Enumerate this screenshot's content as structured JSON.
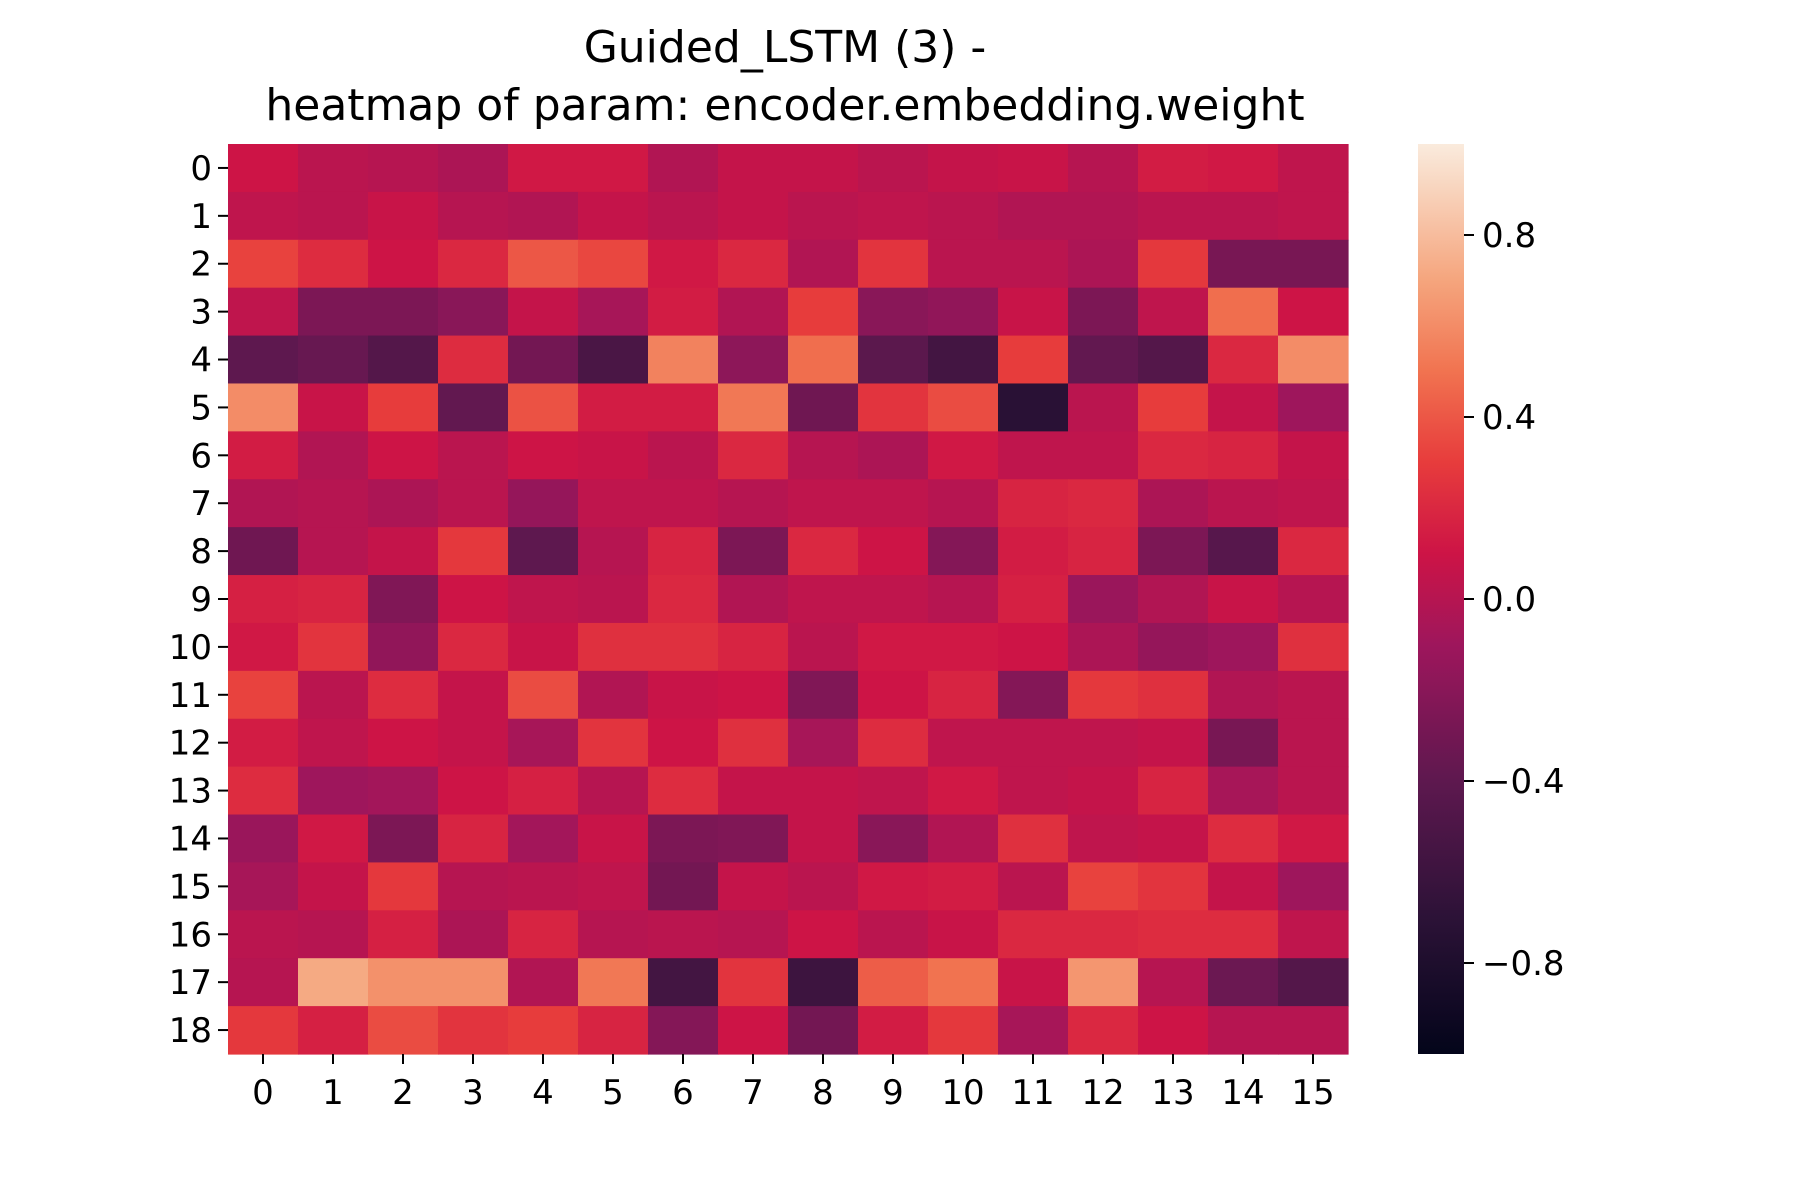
{
  "chart_data": {
    "type": "heatmap",
    "title": "Guided_LSTM (3) -",
    "subtitle": "heatmap of param: encoder.embedding.weight",
    "xlabel": "",
    "ylabel": "",
    "x_categories": [
      "0",
      "1",
      "2",
      "3",
      "4",
      "5",
      "6",
      "7",
      "8",
      "9",
      "10",
      "11",
      "12",
      "13",
      "14",
      "15"
    ],
    "y_categories": [
      "0",
      "1",
      "2",
      "3",
      "4",
      "5",
      "6",
      "7",
      "8",
      "9",
      "10",
      "11",
      "12",
      "13",
      "14",
      "15",
      "16",
      "17",
      "18"
    ],
    "values": [
      [
        0.1,
        0.02,
        0.0,
        -0.04,
        0.12,
        0.12,
        -0.02,
        0.06,
        0.06,
        0.02,
        0.06,
        0.08,
        0.0,
        0.14,
        0.12,
        0.04
      ],
      [
        0.04,
        0.02,
        0.08,
        0.0,
        -0.02,
        0.06,
        0.02,
        0.06,
        0.02,
        0.04,
        0.02,
        -0.02,
        -0.02,
        0.02,
        0.02,
        0.04
      ],
      [
        0.32,
        0.22,
        0.1,
        0.2,
        0.4,
        0.34,
        0.12,
        0.2,
        -0.02,
        0.26,
        0.02,
        0.02,
        -0.04,
        0.28,
        -0.28,
        -0.28
      ],
      [
        0.04,
        -0.26,
        -0.26,
        -0.2,
        0.06,
        -0.06,
        0.14,
        -0.02,
        0.3,
        -0.2,
        -0.16,
        0.08,
        -0.26,
        0.04,
        0.48,
        0.1
      ],
      [
        -0.4,
        -0.36,
        -0.46,
        0.22,
        -0.3,
        -0.52,
        0.56,
        -0.18,
        0.48,
        -0.42,
        -0.56,
        0.3,
        -0.38,
        -0.46,
        0.2,
        0.6
      ],
      [
        0.6,
        0.08,
        0.3,
        -0.38,
        0.38,
        0.14,
        0.14,
        0.52,
        -0.32,
        0.26,
        0.36,
        -0.72,
        0.02,
        0.3,
        0.06,
        -0.1
      ],
      [
        0.14,
        -0.02,
        0.1,
        0.02,
        0.1,
        0.08,
        0.02,
        0.2,
        0.0,
        -0.04,
        0.12,
        0.04,
        0.04,
        0.2,
        0.18,
        0.06
      ],
      [
        -0.02,
        0.0,
        -0.04,
        0.02,
        -0.14,
        0.04,
        0.04,
        0.0,
        0.04,
        0.04,
        0.0,
        0.18,
        0.2,
        -0.04,
        0.02,
        0.04
      ],
      [
        -0.32,
        0.0,
        0.06,
        0.28,
        -0.4,
        0.0,
        0.18,
        -0.26,
        0.2,
        0.1,
        -0.22,
        0.14,
        0.18,
        -0.26,
        -0.44,
        0.2
      ],
      [
        0.16,
        0.18,
        -0.24,
        0.1,
        0.04,
        0.02,
        0.2,
        -0.02,
        0.04,
        0.04,
        0.0,
        0.16,
        -0.12,
        -0.02,
        0.08,
        0.0
      ],
      [
        0.12,
        0.26,
        -0.16,
        0.2,
        0.08,
        0.24,
        0.24,
        0.18,
        0.02,
        0.12,
        0.12,
        0.1,
        -0.04,
        -0.14,
        -0.1,
        0.24
      ],
      [
        0.32,
        0.02,
        0.22,
        0.06,
        0.36,
        -0.02,
        0.08,
        0.1,
        -0.24,
        0.1,
        0.18,
        -0.22,
        0.28,
        0.24,
        -0.02,
        0.02
      ],
      [
        0.14,
        0.04,
        0.1,
        0.06,
        -0.06,
        0.26,
        0.1,
        0.24,
        -0.06,
        0.22,
        0.04,
        0.04,
        0.04,
        0.06,
        -0.28,
        0.02
      ],
      [
        0.22,
        -0.1,
        -0.08,
        0.1,
        0.16,
        0.0,
        0.22,
        0.06,
        0.06,
        0.04,
        0.12,
        0.04,
        0.06,
        0.18,
        -0.06,
        0.02
      ],
      [
        -0.12,
        0.12,
        -0.26,
        0.18,
        -0.08,
        0.08,
        -0.26,
        -0.24,
        0.06,
        -0.2,
        -0.02,
        0.24,
        0.04,
        0.06,
        0.22,
        0.12
      ],
      [
        -0.06,
        0.06,
        0.28,
        0.0,
        0.02,
        0.04,
        -0.3,
        0.06,
        0.02,
        0.12,
        0.14,
        0.02,
        0.32,
        0.26,
        0.06,
        -0.1
      ],
      [
        0.02,
        0.0,
        0.16,
        -0.04,
        0.18,
        0.0,
        0.02,
        0.0,
        0.1,
        0.02,
        0.08,
        0.2,
        0.2,
        0.22,
        0.22,
        0.04
      ],
      [
        0.0,
        0.72,
        0.62,
        0.62,
        -0.02,
        0.52,
        -0.56,
        0.26,
        -0.6,
        0.42,
        0.5,
        0.08,
        0.64,
        0.0,
        -0.34,
        -0.46
      ],
      [
        0.28,
        0.16,
        0.36,
        0.26,
        0.3,
        0.18,
        -0.22,
        0.1,
        -0.3,
        0.14,
        0.28,
        -0.06,
        0.2,
        0.1,
        0.0,
        0.0
      ]
    ],
    "colorbar": {
      "vmin": -1.0,
      "vmax": 1.0,
      "ticks": [
        0.8,
        0.4,
        0.0,
        -0.4,
        -0.8
      ],
      "tick_labels": [
        "0.8",
        "0.4",
        "0.0",
        "−0.4",
        "−0.8"
      ],
      "colormap": "rocket"
    },
    "grid": false,
    "legend": "none"
  }
}
